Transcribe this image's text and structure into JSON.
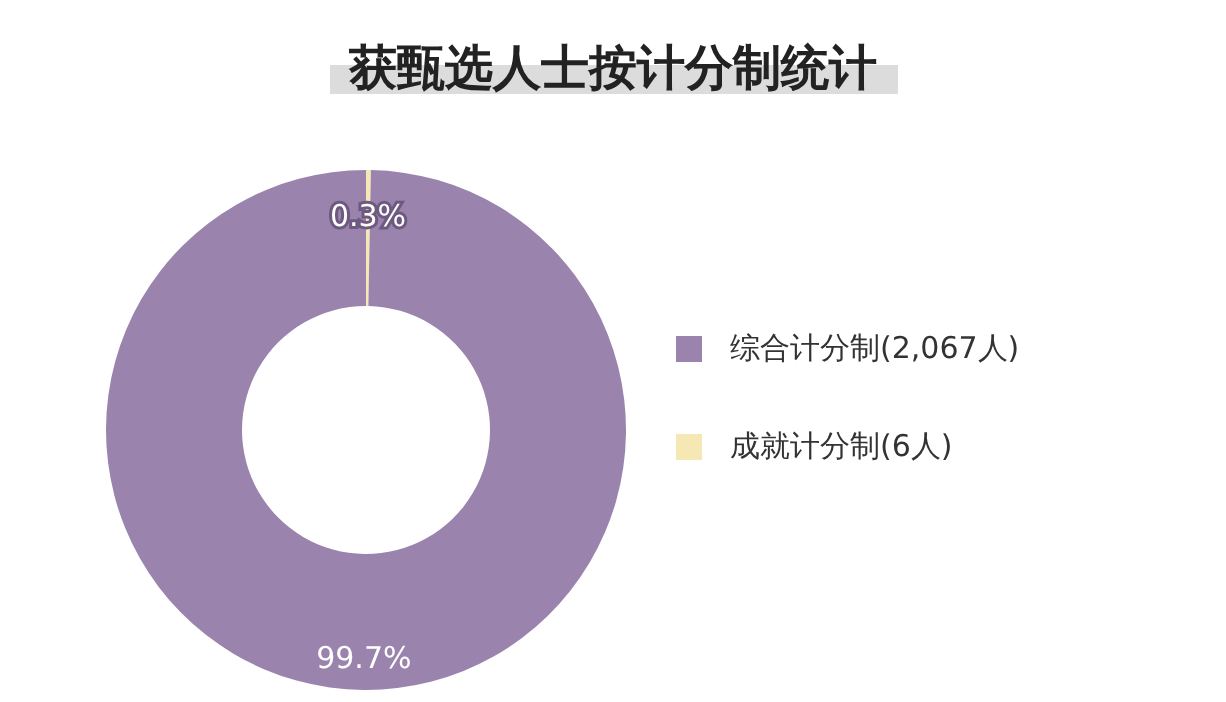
{
  "chart_data": {
    "type": "donut",
    "title": "获甄选人士按计分制统计",
    "categories": [
      "成就计分制(6人)",
      "综合计分制(2,067人)"
    ],
    "values": [
      0.3,
      99.7
    ],
    "colors": [
      "#f6e8b4",
      "#9a84ae"
    ],
    "value_labels": [
      "0.3%",
      "99.7%"
    ],
    "legend": "right"
  }
}
